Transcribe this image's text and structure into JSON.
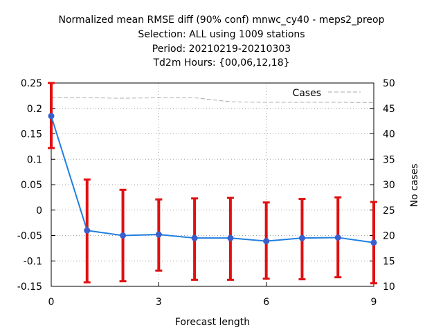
{
  "chart_data": {
    "type": "line",
    "title_lines": [
      "Normalized mean RMSE diff (90% conf) mnwc_cy40 - meps2_preop",
      "Selection: ALL using  1009 stations",
      "Period: 20210219-20210303",
      "Td2m   Hours: {00,06,12,18}"
    ],
    "xlabel": "Forecast length",
    "ylabel_right": "No cases",
    "xlim": [
      0,
      9
    ],
    "ylim": [
      -0.15,
      0.25
    ],
    "y2lim": [
      10,
      50
    ],
    "x_ticks": [
      0,
      3,
      6,
      9
    ],
    "y_ticks": [
      "0.25",
      "0.2",
      "0.15",
      "0.1",
      "0.05",
      "0",
      "-0.05",
      "-0.1",
      "-0.15"
    ],
    "y_tick_values": [
      0.25,
      0.2,
      0.15,
      0.1,
      0.05,
      0,
      -0.05,
      -0.1,
      -0.15
    ],
    "y2_ticks": [
      "50",
      "45",
      "40",
      "35",
      "30",
      "25",
      "20",
      "15",
      "10"
    ],
    "y2_tick_values": [
      50,
      45,
      40,
      35,
      30,
      25,
      20,
      15,
      10
    ],
    "grid": true,
    "legend": {
      "label": "Cases",
      "placement": "top-right"
    },
    "series": [
      {
        "style": "line-points",
        "color": "#1f7fe0",
        "marker_color": "#3a5fcd",
        "x": [
          0,
          1,
          2,
          3,
          4,
          5,
          6,
          7,
          8,
          9
        ],
        "y": [
          0.185,
          -0.04,
          -0.05,
          -0.048,
          -0.055,
          -0.055,
          -0.061,
          -0.055,
          -0.054,
          -0.064
        ]
      },
      {
        "style": "errorbars",
        "color": "#e01010",
        "x": [
          0,
          1,
          2,
          3,
          4,
          5,
          6,
          7,
          8,
          9
        ],
        "low": [
          0.122,
          -0.142,
          -0.14,
          -0.119,
          -0.137,
          -0.137,
          -0.135,
          -0.136,
          -0.132,
          -0.144
        ],
        "high": [
          0.25,
          0.06,
          0.04,
          0.021,
          0.023,
          0.024,
          0.015,
          0.022,
          0.025,
          0.016
        ]
      },
      {
        "name": "Cases",
        "style": "dashed",
        "axis": "right",
        "color": "#aaaaaa",
        "x": [
          0,
          1,
          2,
          3,
          4,
          5,
          6,
          7,
          8,
          9
        ],
        "y": [
          47.2,
          47.1,
          47.0,
          47.1,
          47.1,
          46.3,
          46.2,
          46.2,
          46.2,
          46.1
        ]
      }
    ]
  }
}
